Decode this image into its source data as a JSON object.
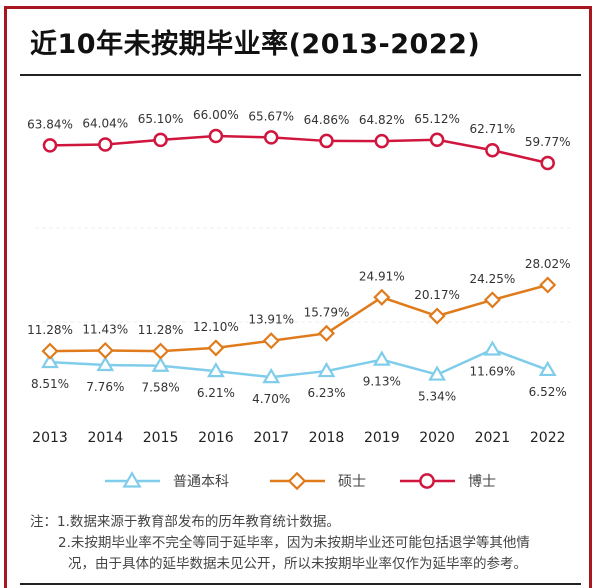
{
  "title": "近10年未按期毕业率(2013-2022)",
  "chart_data": {
    "type": "line",
    "categories": [
      "2013",
      "2014",
      "2015",
      "2016",
      "2017",
      "2018",
      "2019",
      "2020",
      "2021",
      "2022"
    ],
    "series": [
      {
        "name": "普通本科",
        "color": "#7fcdea",
        "marker": "triangle",
        "values": [
          8.51,
          7.76,
          7.58,
          6.21,
          4.7,
          6.23,
          9.13,
          5.34,
          11.69,
          6.52
        ],
        "labels": [
          "8.51%",
          "7.76%",
          "7.58%",
          "6.21%",
          "4.70%",
          "6.23%",
          "9.13%",
          "5.34%",
          "11.69%",
          "6.52%"
        ]
      },
      {
        "name": "硕士",
        "color": "#e07b1c",
        "marker": "diamond",
        "values": [
          11.28,
          11.43,
          11.28,
          12.1,
          13.91,
          15.79,
          24.91,
          20.17,
          24.25,
          28.02
        ],
        "labels": [
          "11.28%",
          "11.43%",
          "11.28%",
          "12.10%",
          "13.91%",
          "15.79%",
          "24.91%",
          "20.17%",
          "24.25%",
          "28.02%"
        ]
      },
      {
        "name": "博士",
        "color": "#d0163e",
        "marker": "circle",
        "values": [
          63.84,
          64.04,
          65.1,
          66.0,
          65.67,
          64.86,
          64.82,
          65.12,
          62.71,
          59.77
        ],
        "labels": [
          "63.84%",
          "64.04%",
          "65.10%",
          "66.00%",
          "65.67%",
          "64.86%",
          "64.82%",
          "65.12%",
          "62.71%",
          "59.77%"
        ]
      }
    ],
    "unit": "%",
    "axis_break": true,
    "grid": "faint dashed",
    "legend": "bottom"
  },
  "notes": [
    "注：1.数据来源于教育部发布的历年教育统计数据。",
    "2.未按期毕业率不完全等同于延毕率，因为未按期毕业还可能包括退学等其他情",
    "况，由于具体的延毕数据未见公开，所以未按期毕业率仅作为延毕率的参考。"
  ]
}
